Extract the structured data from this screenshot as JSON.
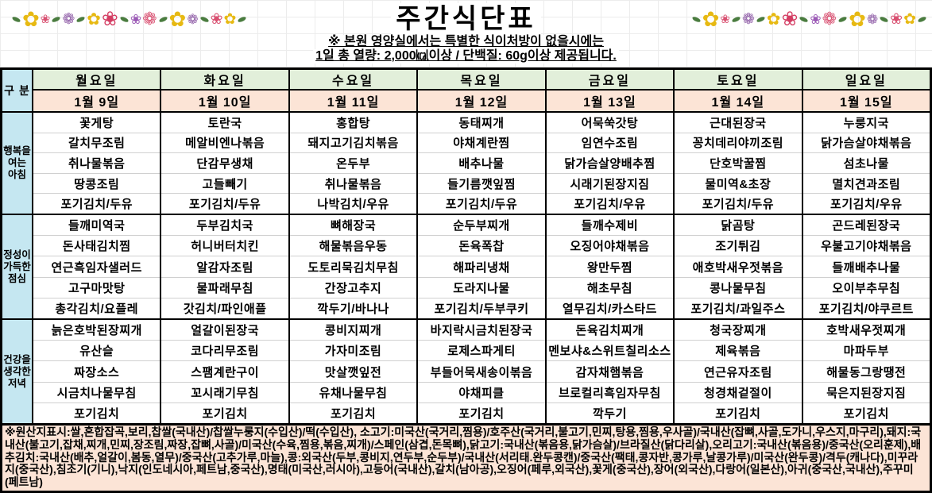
{
  "header": {
    "title": "주간식단표",
    "subtitle1": "※ 본원 영양실에서는 특별한 식이처방이 없을시에는",
    "subtitle2": "1일 총 열량: 2,000㎉이상 / 단백질: 60g이상 제공됩니다."
  },
  "decor": {
    "garland": [
      {
        "leaf": true
      },
      {
        "g": "✿",
        "c": "#e7b912",
        "s": 26
      },
      {
        "g": "❀",
        "c": "#d94f70",
        "s": 15
      },
      {
        "leaf": true
      },
      {
        "g": "❁",
        "c": "#8e5ba6",
        "s": 19
      },
      {
        "leaf": true
      },
      {
        "g": "✿",
        "c": "#e7b912",
        "s": 21
      },
      {
        "g": "❀",
        "c": "#d43d63",
        "s": 25
      },
      {
        "leaf": true
      },
      {
        "g": "❀",
        "c": "#9b59b6",
        "s": 17
      },
      {
        "g": "❁",
        "c": "#d94f70",
        "s": 22
      },
      {
        "leaf": true
      },
      {
        "g": "✿",
        "c": "#e7b912",
        "s": 26
      },
      {
        "g": "❁",
        "c": "#8e5ba6",
        "s": 17
      },
      {
        "leaf": true
      },
      {
        "g": "❀",
        "c": "#d94f70",
        "s": 19
      },
      {
        "g": "✿",
        "c": "#e7b912",
        "s": 19
      },
      {
        "leaf": true
      }
    ]
  },
  "table": {
    "corner_label": "구 분",
    "meal_keys": [
      "breakfast",
      "lunch",
      "dinner"
    ],
    "section_labels": [
      "행복을\n여는\n아침",
      "정성이\n가득한\n점심",
      "건강을\n생각한\n저녁"
    ],
    "colors": {
      "corner_bg": "#c5e7f1",
      "day_bg": "#e2efda",
      "date_bg": "#fce4d6",
      "section_bg": "#c5e7f1",
      "footer_bg": "#fce4d6",
      "border": "#000000",
      "item_divider": "#d0d0d0"
    },
    "days": [
      {
        "name": "월요일",
        "date": "1월 9일",
        "breakfast": [
          "꽃게탕",
          "갈치무조림",
          "취나물볶음",
          "땅콩조림",
          "포기김치/두유"
        ],
        "lunch": [
          "들깨미역국",
          "돈사태김치찜",
          "연근흑임자샐러드",
          "고구마맛탕",
          "총각김치/요플레"
        ],
        "dinner": [
          "늙은호박된장찌개",
          "유산슬",
          "짜장소스",
          "시금치나물무침",
          "포기김치"
        ]
      },
      {
        "name": "화요일",
        "date": "1월 10일",
        "breakfast": [
          "토란국",
          "메알비엔나볶음",
          "단감무생채",
          "고들빼기",
          "포기김치/두유"
        ],
        "lunch": [
          "두부김치국",
          "허니버터치킨",
          "알감자조림",
          "물파래무침",
          "갓김치/파인애플"
        ],
        "dinner": [
          "얼갈이된장국",
          "코다리무조림",
          "스팸계란구이",
          "꼬시래기무침",
          "포기김치"
        ]
      },
      {
        "name": "수요일",
        "date": "1월 11일",
        "breakfast": [
          "홍합탕",
          "돼지고기김치볶음",
          "온두부",
          "취나물볶음",
          "나박김치/우유"
        ],
        "lunch": [
          "뼈해장국",
          "해물볶음우동",
          "도토리묵김치무침",
          "간장고추지",
          "깍두기/바나나"
        ],
        "dinner": [
          "콩비지찌개",
          "가자미조림",
          "맛살깻잎전",
          "유채나물무침",
          "포기김치"
        ]
      },
      {
        "name": "목요일",
        "date": "1월 12일",
        "breakfast": [
          "동태찌개",
          "야채계란찜",
          "배추나물",
          "들기름깻잎찜",
          "포기김치/두유"
        ],
        "lunch": [
          "순두부찌개",
          "돈육폭찹",
          "해파리냉채",
          "도라지나물",
          "포기김치/두부쿠키"
        ],
        "dinner": [
          "바지락시금치된장국",
          "로제스파게티",
          "부들어묵새송이볶음",
          "야채피클",
          "포기김치"
        ]
      },
      {
        "name": "금요일",
        "date": "1월 13일",
        "breakfast": [
          "어묵쑥갓탕",
          "임연수조림",
          "닭가슴살양배추찜",
          "시래기된장지짐",
          "포기김치/우유"
        ],
        "lunch": [
          "들깨수제비",
          "오징어야채볶음",
          "왕만두찜",
          "해초무침",
          "열무김치/카스타드"
        ],
        "dinner": [
          "돈육김치찌개",
          "멘보샤&스위트칠리소스",
          "감자채햄볶음",
          "브로컬리흑임자무침",
          "깍두기"
        ]
      },
      {
        "name": "토요일",
        "date": "1월 14일",
        "breakfast": [
          "근대된장국",
          "꽁치데리야끼조림",
          "단호박꿀찜",
          "물미역&초장",
          "포기김치/두유"
        ],
        "lunch": [
          "닭곰탕",
          "조기튀김",
          "애호박새우젓볶음",
          "콩나물무침",
          "포기김치/과일주스"
        ],
        "dinner": [
          "청국장찌개",
          "제육볶음",
          "연근유자조림",
          "청경채겉절이",
          "포기김치"
        ]
      },
      {
        "name": "일요일",
        "date": "1월 15일",
        "breakfast": [
          "누룽지국",
          "닭가슴살야채볶음",
          "섬초나물",
          "멸치견과조림",
          "포기김치/우유"
        ],
        "lunch": [
          "곤드레된장국",
          "우불고기야채볶음",
          "들깨배추나물",
          "오이부추무침",
          "포기김치/야쿠르트"
        ],
        "dinner": [
          "호박새우젓찌개",
          "마파두부",
          "해물동그랑땡전",
          "묵은지된장지짐",
          "포기김치"
        ]
      }
    ]
  },
  "footer": {
    "origin_text": "※원산지표시:쌀,혼합잡곡,보리,찹쌀(국내산)/찹쌀누룽지(수입산)/떡(수입산), 소고기:미국산(국거리,찜용)/호주산(국거리,불고기,민찌,탕용,찜용,우사골)/국내산(잡뼈,사골,도가니,우스지,마구리),돼지:국내산(불고기,잡채,찌개,민찌,장조림,짜장,잡뼈,사골)/미국산(수육,찜용,볶음,찌개)/스페인(삼겹,돈목뼈),닭고기:국내산(볶음용,닭가슴살)/브라질산(닭다리살),오리고기:국내산(볶음용)/중국산(오리훈제),배추김치:국내산(배추,얼갈이,봄동,열무)/중국산(고추가루,마늘),콩:외국산(두부,콩비지,연두부,순두부)/국내산(서리태.완두콩캔)/중국산(팩태,콩자반,콩가루,날콩가루)/미국산(완두콩)/격두(캐나다),미꾸라지(중국산),침조기(기니),낙지(인도네시아,페트남,중국산),명태(미국산,러시아),고등어(국내산),갈치(남아공),오징어(페루,외국산),꽃게(중국산),장어(외국산),다랑어(일본산),아귀(중국산,국내산),주꾸미(페트남)"
  }
}
